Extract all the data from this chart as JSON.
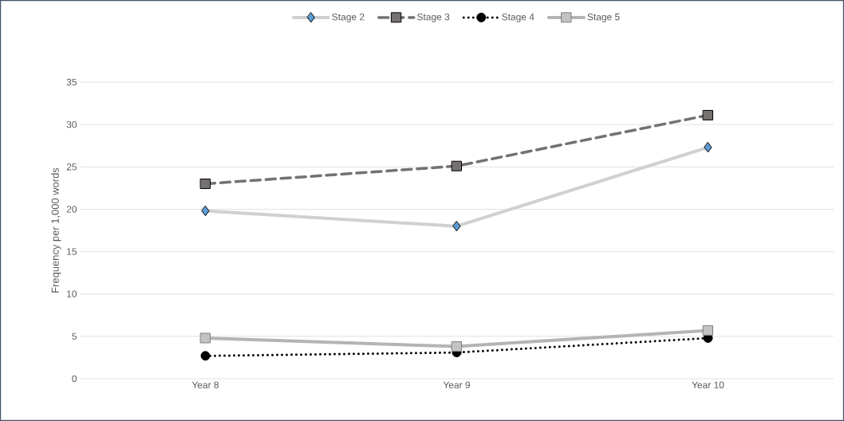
{
  "chart_data": {
    "type": "line",
    "ylabel": "Frequency per 1,000 words",
    "categories": [
      "Year 8",
      "Year 9",
      "Year 10"
    ],
    "series": [
      {
        "name": "Stage 2",
        "color": "#d0d0d0",
        "marker": "diamond",
        "line_style": "solid",
        "values": [
          19.8,
          18.0,
          27.3
        ]
      },
      {
        "name": "Stage 3",
        "color": "#767171",
        "marker": "square",
        "line_style": "dashed",
        "values": [
          23.0,
          25.1,
          31.1
        ]
      },
      {
        "name": "Stage 4",
        "color": "#000000",
        "marker": "circle",
        "line_style": "dotted",
        "values": [
          2.7,
          3.1,
          4.8
        ]
      },
      {
        "name": "Stage 5",
        "color": "#b4b4b4",
        "marker": "square",
        "line_style": "solid",
        "values": [
          4.8,
          3.8,
          5.7
        ]
      }
    ],
    "ylim": [
      0,
      35
    ],
    "yticks": [
      0,
      5,
      10,
      15,
      20,
      25,
      30,
      35
    ],
    "grid": "y",
    "legend": "top"
  }
}
